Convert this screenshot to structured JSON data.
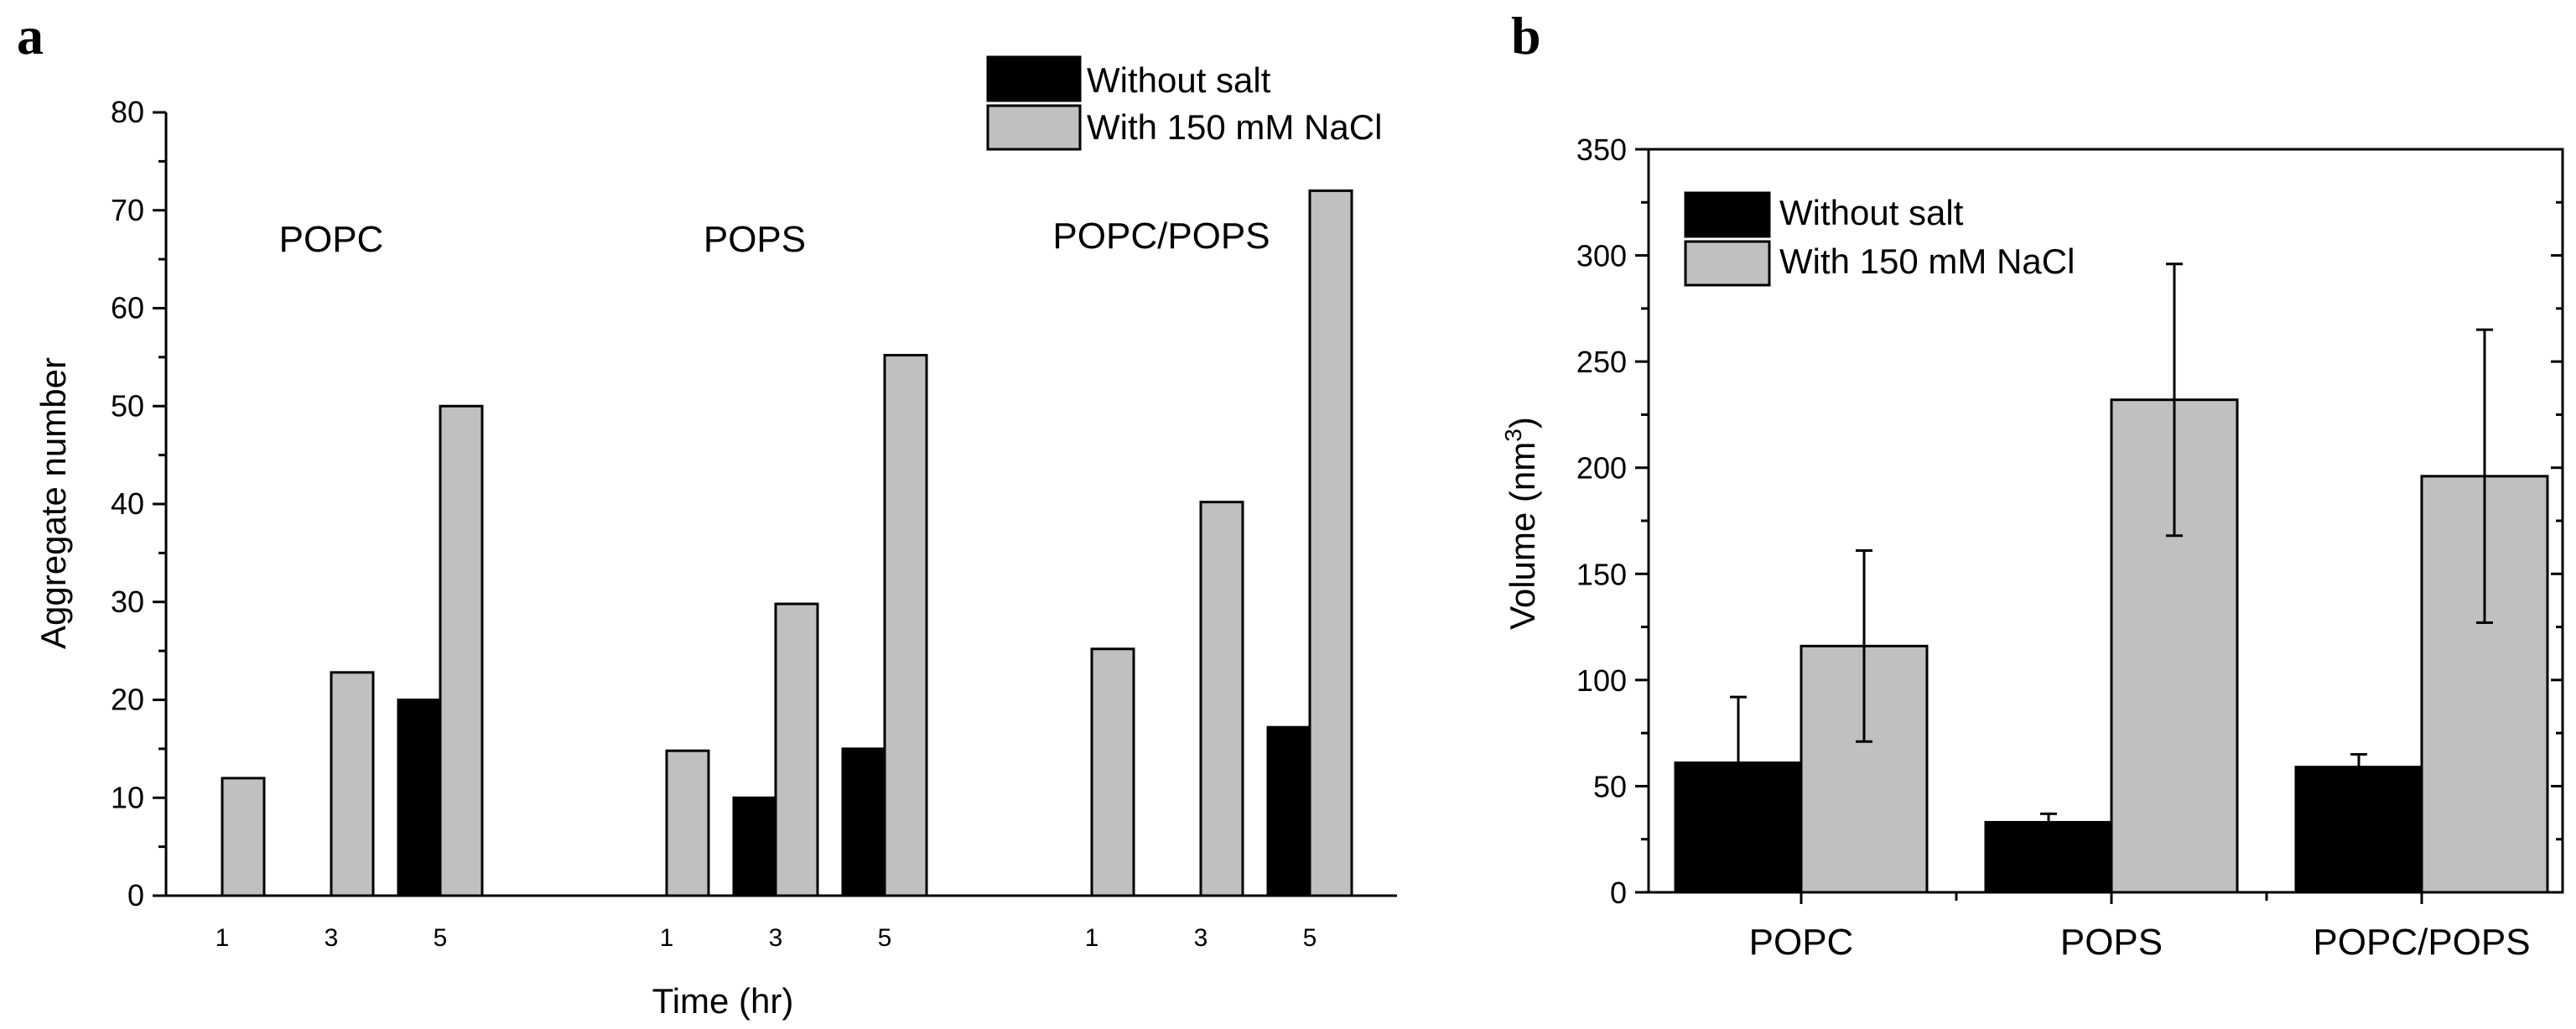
{
  "chart_data": [
    {
      "panel": "a",
      "type": "bar",
      "ylabel": "Aggregate number",
      "xlabel": "Time (hr)",
      "ylim": [
        0,
        80
      ],
      "yticks": [
        0,
        10,
        20,
        30,
        40,
        50,
        60,
        70,
        80
      ],
      "groups": [
        "POPC",
        "POPS",
        "POPC/POPS"
      ],
      "time_labels": [
        "1",
        "3",
        "5"
      ],
      "legend": [
        "Without salt",
        "With 150 mM NaCl"
      ],
      "series": [
        {
          "name": "Without salt",
          "color": "#000000",
          "values": [
            [
              0,
              0,
              20
            ],
            [
              0,
              10,
              15
            ],
            [
              0,
              0,
              17.2
            ]
          ]
        },
        {
          "name": "With 150 mM NaCl",
          "color": "#c0c0c0",
          "values": [
            [
              12,
              22.8,
              50
            ],
            [
              14.8,
              29.8,
              55.2
            ],
            [
              25.2,
              40.2,
              72
            ]
          ]
        }
      ]
    },
    {
      "panel": "b",
      "type": "bar",
      "ylabel": "Volume (nm",
      "ylabel_sup": "3",
      "ylabel_end": ")",
      "ylim": [
        0,
        350
      ],
      "yticks": [
        0,
        50,
        100,
        150,
        200,
        250,
        300,
        350
      ],
      "categories": [
        "POPC",
        "POPS",
        "POPC/POPS"
      ],
      "legend": [
        "Without salt",
        "With 150 mM NaCl"
      ],
      "series": [
        {
          "name": "Without salt",
          "color": "#000000",
          "values": [
            61,
            33,
            59
          ],
          "errors": [
            31,
            4,
            6
          ]
        },
        {
          "name": "With 150 mM NaCl",
          "color": "#c0c0c0",
          "values": [
            116,
            232,
            196
          ],
          "errors": [
            45,
            64,
            69
          ]
        }
      ]
    }
  ]
}
